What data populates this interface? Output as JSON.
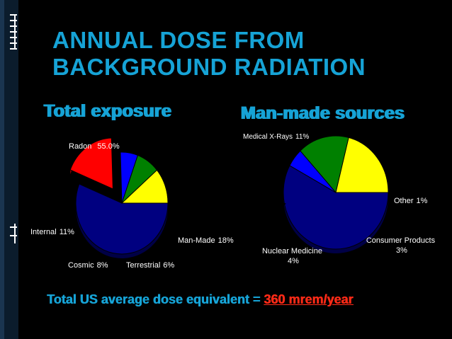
{
  "title_lines": [
    "ANNUAL DOSE FROM",
    "BACKGROUND RADIATION"
  ],
  "footer": {
    "prefix": "Total US average dose equivalent = ",
    "highlight": "360 mrem/year"
  },
  "colors": {
    "title": "#16a3d6",
    "highlight": "#ff2a17",
    "navy": "#000080",
    "yellow": "#ffff00",
    "green": "#008000",
    "blue": "#0000ff",
    "red": "#ff0000"
  },
  "chart_data": [
    {
      "type": "pie",
      "title": "Total exposure",
      "slices": [
        {
          "label": "Radon",
          "value_text": "55.0%",
          "value": 55,
          "color": "#000080"
        },
        {
          "label": "Man-Made",
          "value_text": "18%",
          "value": 18,
          "color": "#ff0000",
          "exploded": true
        },
        {
          "label": "Terrestrial",
          "value_text": "6%",
          "value": 6,
          "color": "#0000ff"
        },
        {
          "label": "Cosmic",
          "value_text": "8%",
          "value": 8,
          "color": "#008000"
        },
        {
          "label": "Internal",
          "value_text": "11%",
          "value": 11,
          "color": "#ffff00"
        }
      ]
    },
    {
      "type": "pie",
      "title": "Man-made sources",
      "slices": [
        {
          "label": "Medical X-Rays",
          "value_text": "11%",
          "value": 11,
          "color": "#000080"
        },
        {
          "label": "Other",
          "value_text": "1%",
          "value": 1,
          "color": "#0000ff"
        },
        {
          "label": "Consumer Products",
          "value_text": "3%",
          "value": 3,
          "color": "#008000"
        },
        {
          "label": "Nuclear Medicine",
          "value_text": "4%",
          "value": 4,
          "color": "#ffff00"
        }
      ]
    }
  ]
}
